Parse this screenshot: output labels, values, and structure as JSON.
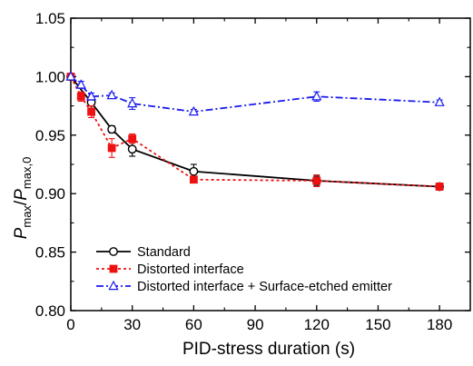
{
  "chart_data": {
    "type": "line",
    "xlabel": "PID-stress duration (s)",
    "ylabel": {
      "main_1": "P",
      "sub_1": "max",
      "sep": "/",
      "main_2": "P",
      "sub_2": "max,0"
    },
    "xlim": [
      0,
      195
    ],
    "ylim": [
      0.8,
      1.05
    ],
    "xticks": [
      0,
      30,
      60,
      90,
      120,
      150,
      180
    ],
    "yticks": [
      0.8,
      0.85,
      0.9,
      0.95,
      1.0,
      1.05
    ],
    "ytick_labels": [
      "0.80",
      "0.85",
      "0.90",
      "0.95",
      "1.00",
      "1.05"
    ],
    "grid": false,
    "legend_position": "bottom-left",
    "series": [
      {
        "name": "Standard",
        "color": "#000000",
        "line": "solid",
        "marker": "circle-open",
        "x": [
          0,
          10,
          20,
          30,
          60,
          120,
          180
        ],
        "y": [
          1.0,
          0.978,
          0.955,
          0.938,
          0.919,
          0.911,
          0.906
        ],
        "err": [
          0.0,
          0.005,
          0.003,
          0.006,
          0.006,
          0.004,
          0.003
        ]
      },
      {
        "name": "Distorted interface",
        "color": "#ee1111",
        "line": "dotted",
        "marker": "square-filled",
        "x": [
          0,
          5,
          10,
          20,
          30,
          60,
          120,
          180
        ],
        "y": [
          1.0,
          0.983,
          0.97,
          0.939,
          0.947,
          0.912,
          0.911,
          0.906
        ],
        "err": [
          0.0,
          0.004,
          0.005,
          0.008,
          0.004,
          0.002,
          0.005,
          0.003
        ]
      },
      {
        "name": "Distorted interface + Surface-etched emitter",
        "color": "#1a1aee",
        "line": "dashdot",
        "marker": "triangle-open",
        "x": [
          0,
          5,
          10,
          20,
          30,
          60,
          120,
          180
        ],
        "y": [
          1.0,
          0.993,
          0.983,
          0.984,
          0.977,
          0.97,
          0.983,
          0.978
        ],
        "err": [
          0.0,
          0.003,
          0.003,
          0.002,
          0.005,
          0.002,
          0.004,
          0.002
        ]
      }
    ]
  }
}
